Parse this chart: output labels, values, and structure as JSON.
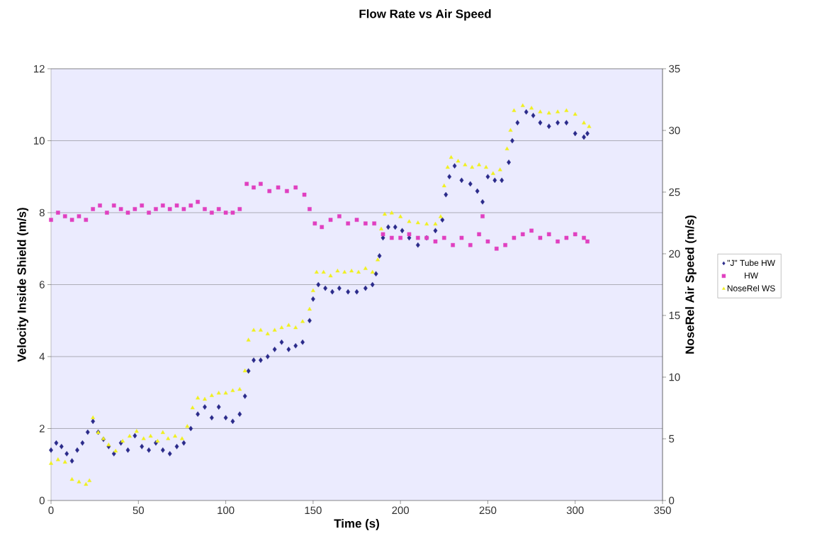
{
  "chart_data": {
    "type": "scatter",
    "title": "Flow Rate vs Air Speed",
    "xlabel": "Time (s)",
    "ylabel": "Velocity Inside Shield (m/s)",
    "y2label": "NoseRel Air Speed (m/s)",
    "xlim": [
      0,
      350
    ],
    "xticks": [
      0,
      50,
      100,
      150,
      200,
      250,
      300,
      350
    ],
    "ylim": [
      0,
      12
    ],
    "yticks": [
      0,
      2,
      4,
      6,
      8,
      10,
      12
    ],
    "y2lim": [
      0,
      35
    ],
    "y2ticks": [
      0,
      5,
      10,
      15,
      20,
      25,
      30,
      35
    ],
    "grid": "y",
    "legend": "right",
    "series": [
      {
        "name": "\"J\" Tube HW",
        "color": "#2a2a8a",
        "marker": "diamond",
        "x": [
          0,
          3,
          6,
          9,
          12,
          15,
          18,
          21,
          24,
          27,
          30,
          33,
          36,
          40,
          44,
          48,
          52,
          56,
          60,
          64,
          68,
          72,
          76,
          80,
          84,
          88,
          92,
          96,
          100,
          104,
          108,
          111,
          113,
          116,
          120,
          124,
          128,
          132,
          136,
          140,
          144,
          148,
          150,
          153,
          157,
          161,
          165,
          170,
          175,
          180,
          184,
          186,
          188,
          190,
          193,
          197,
          201,
          205,
          210,
          215,
          220,
          224,
          226,
          228,
          231,
          235,
          240,
          244,
          247,
          250,
          254,
          258,
          262,
          264,
          267,
          272,
          276,
          280,
          285,
          290,
          295,
          300,
          305,
          307
        ],
        "values": [
          1.4,
          1.6,
          1.5,
          1.3,
          1.1,
          1.4,
          1.6,
          1.9,
          2.2,
          1.9,
          1.7,
          1.5,
          1.3,
          1.6,
          1.4,
          1.8,
          1.5,
          1.4,
          1.6,
          1.4,
          1.3,
          1.5,
          1.6,
          2.0,
          2.4,
          2.6,
          2.3,
          2.6,
          2.3,
          2.2,
          2.4,
          2.9,
          3.6,
          3.9,
          3.9,
          4.0,
          4.2,
          4.4,
          4.2,
          4.3,
          4.4,
          5.0,
          5.6,
          6.0,
          5.9,
          5.8,
          5.9,
          5.8,
          5.8,
          5.9,
          6.0,
          6.3,
          6.8,
          7.3,
          7.6,
          7.6,
          7.5,
          7.3,
          7.1,
          7.3,
          7.5,
          7.8,
          8.5,
          9.0,
          9.3,
          8.9,
          8.8,
          8.6,
          8.3,
          9.0,
          8.9,
          8.9,
          9.4,
          10.0,
          10.5,
          10.8,
          10.7,
          10.5,
          10.4,
          10.5,
          10.5,
          10.2,
          10.1,
          10.2
        ]
      },
      {
        "name": "HW",
        "color": "#e040c0",
        "marker": "square",
        "x": [
          0,
          4,
          8,
          12,
          16,
          20,
          24,
          28,
          32,
          36,
          40,
          44,
          48,
          52,
          56,
          60,
          64,
          68,
          72,
          76,
          80,
          84,
          88,
          92,
          96,
          100,
          104,
          108,
          112,
          116,
          120,
          125,
          130,
          135,
          140,
          145,
          148,
          151,
          155,
          160,
          165,
          170,
          175,
          180,
          185,
          190,
          195,
          200,
          205,
          210,
          215,
          220,
          225,
          230,
          235,
          240,
          245,
          247,
          250,
          255,
          260,
          265,
          270,
          275,
          280,
          285,
          290,
          295,
          300,
          305,
          307
        ],
        "values": [
          7.8,
          8.0,
          7.9,
          7.8,
          7.9,
          7.8,
          8.1,
          8.2,
          8.0,
          8.2,
          8.1,
          8.0,
          8.1,
          8.2,
          8.0,
          8.1,
          8.2,
          8.1,
          8.2,
          8.1,
          8.2,
          8.3,
          8.1,
          8.0,
          8.1,
          8.0,
          8.0,
          8.1,
          8.8,
          8.7,
          8.8,
          8.6,
          8.7,
          8.6,
          8.7,
          8.5,
          8.1,
          7.7,
          7.6,
          7.8,
          7.9,
          7.7,
          7.8,
          7.7,
          7.7,
          7.4,
          7.3,
          7.3,
          7.4,
          7.3,
          7.3,
          7.2,
          7.3,
          7.1,
          7.3,
          7.1,
          7.4,
          7.9,
          7.2,
          7.0,
          7.1,
          7.3,
          7.4,
          7.5,
          7.3,
          7.4,
          7.2,
          7.3,
          7.4,
          7.3,
          7.2
        ]
      },
      {
        "name": "NoseRel WS",
        "color": "#f0f020",
        "marker": "triangle",
        "axis": "y2",
        "x": [
          0,
          4,
          8,
          12,
          16,
          20,
          22,
          24,
          27,
          30,
          33,
          37,
          41,
          45,
          49,
          53,
          57,
          61,
          64,
          67,
          71,
          75,
          78,
          81,
          84,
          88,
          92,
          96,
          100,
          104,
          108,
          111,
          113,
          116,
          120,
          124,
          128,
          132,
          136,
          140,
          144,
          148,
          150,
          152,
          156,
          160,
          164,
          168,
          172,
          176,
          180,
          184,
          187,
          189,
          191,
          195,
          200,
          205,
          210,
          215,
          220,
          223,
          225,
          227,
          229,
          233,
          237,
          241,
          245,
          249,
          253,
          257,
          261,
          263,
          265,
          270,
          275,
          280,
          285,
          290,
          295,
          300,
          305,
          308
        ],
        "values": [
          3.0,
          3.3,
          3.1,
          1.7,
          1.5,
          1.3,
          1.6,
          6.7,
          5.5,
          5.0,
          4.5,
          4.0,
          4.8,
          5.2,
          5.6,
          5.0,
          5.2,
          4.8,
          5.5,
          5.0,
          5.2,
          5.0,
          6.0,
          7.5,
          8.3,
          8.2,
          8.5,
          8.7,
          8.7,
          8.9,
          9.0,
          10.5,
          13.0,
          13.8,
          13.8,
          13.5,
          13.8,
          14.0,
          14.2,
          14.0,
          14.5,
          15.5,
          17.0,
          18.5,
          18.5,
          18.2,
          18.6,
          18.5,
          18.6,
          18.5,
          18.8,
          18.5,
          19.5,
          22.0,
          23.2,
          23.3,
          23.0,
          22.6,
          22.5,
          22.4,
          22.4,
          23.0,
          25.5,
          27.0,
          27.8,
          27.5,
          27.2,
          27.0,
          27.2,
          27.0,
          26.5,
          26.8,
          28.5,
          30.0,
          31.6,
          32.0,
          31.8,
          31.5,
          31.4,
          31.5,
          31.6,
          31.3,
          30.6,
          30.3
        ]
      }
    ]
  }
}
